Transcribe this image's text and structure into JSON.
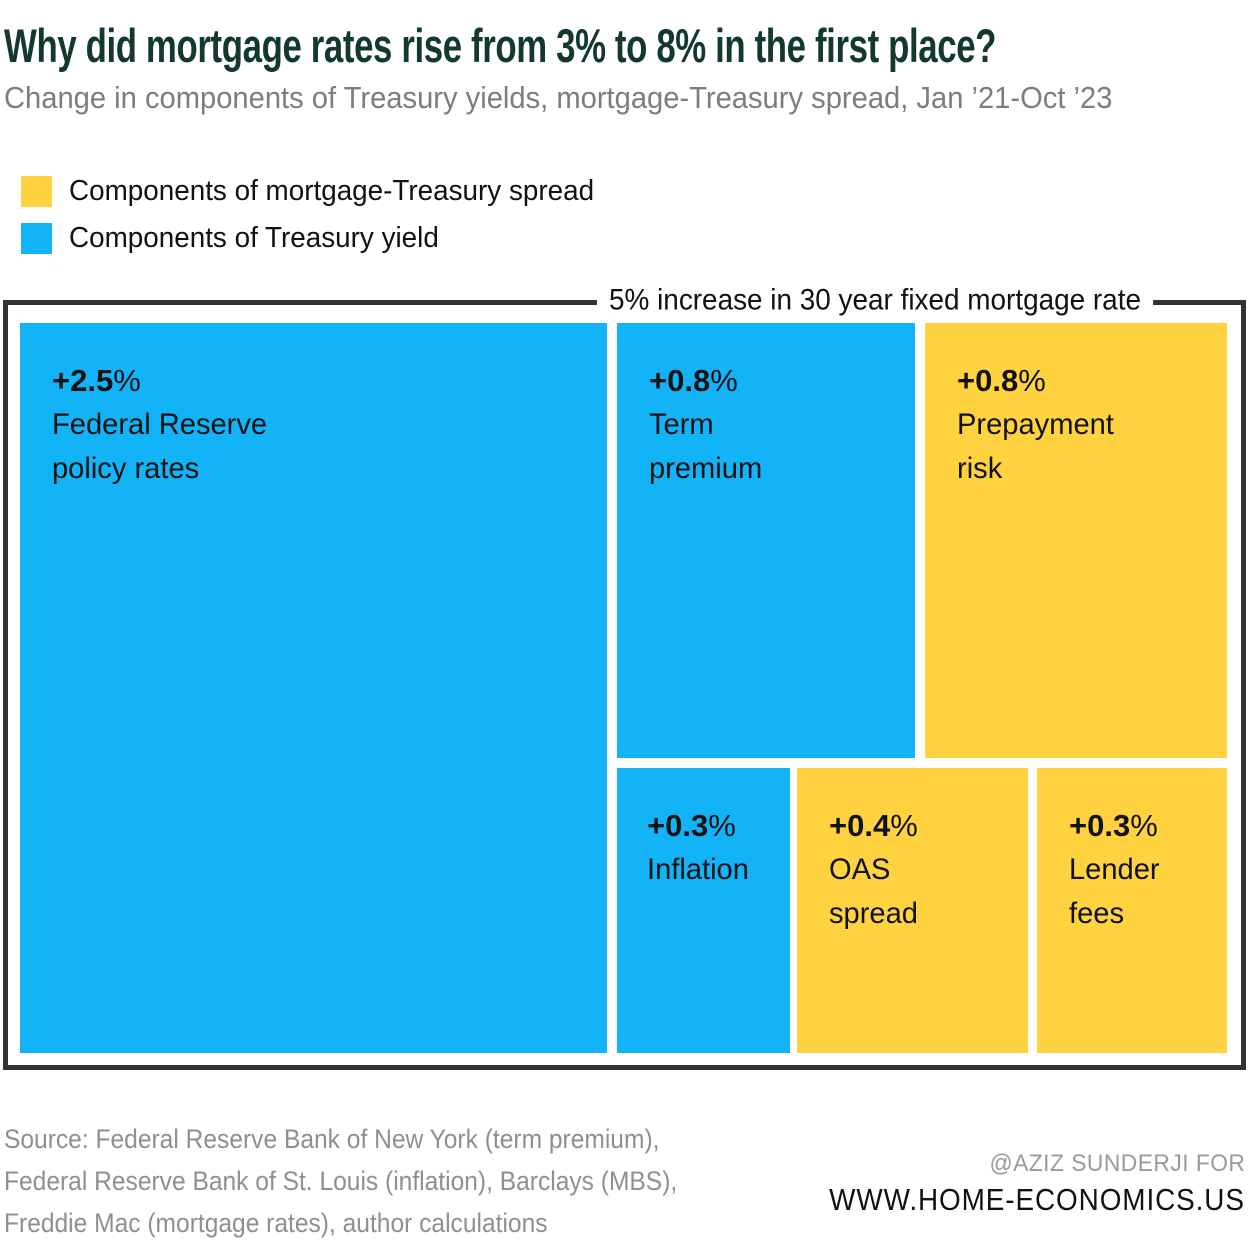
{
  "header": {
    "title": "Why did mortgage rates rise from 3% to 8% in the first place?",
    "subtitle": "Change in components of Treasury yields, mortgage-Treasury spread, Jan ’21-Oct ’23"
  },
  "legend": {
    "items": [
      {
        "label": "Components of mortgage-Treasury spread",
        "color": "#ffd23f"
      },
      {
        "label": "Components of Treasury yield",
        "color": "#12b3f7"
      }
    ]
  },
  "chart_data": {
    "type": "treemap",
    "title": "Why did mortgage rates rise from 3% to 8% in the first place?",
    "subtitle": "Change in components of Treasury yields, mortgage-Treasury spread, Jan ’21-Oct ’23",
    "bracket_label": "5% increase in 30 year fixed mortgage rate",
    "total_percent": 5,
    "legend": [
      {
        "name": "Components of mortgage-Treasury spread",
        "color": "#ffd23f"
      },
      {
        "name": "Components of Treasury yield",
        "color": "#12b3f7"
      }
    ],
    "cells": [
      {
        "name": "Federal Reserve policy rates",
        "value": 2.5,
        "display_value": "+2.5",
        "unit": "%",
        "label_lines": "Federal Reserve\npolicy rates",
        "group": "Components of Treasury yield",
        "color": "#12b3f7"
      },
      {
        "name": "Term premium",
        "value": 0.8,
        "display_value": "+0.8",
        "unit": "%",
        "label_lines": "Term\npremium",
        "group": "Components of Treasury yield",
        "color": "#12b3f7"
      },
      {
        "name": "Prepayment risk",
        "value": 0.8,
        "display_value": "+0.8",
        "unit": "%",
        "label_lines": "Prepayment\nrisk",
        "group": "Components of mortgage-Treasury spread",
        "color": "#ffd23f"
      },
      {
        "name": "Inflation",
        "value": 0.3,
        "display_value": "+0.3",
        "unit": "%",
        "label_lines": "Inflation",
        "group": "Components of Treasury yield",
        "color": "#12b3f7"
      },
      {
        "name": "OAS spread",
        "value": 0.4,
        "display_value": "+0.4",
        "unit": "%",
        "label_lines": "OAS\nspread",
        "group": "Components of mortgage-Treasury spread",
        "color": "#ffd23f"
      },
      {
        "name": "Lender fees",
        "value": 0.3,
        "display_value": "+0.3",
        "unit": "%",
        "label_lines": "Lender\nfees",
        "group": "Components of mortgage-Treasury spread",
        "color": "#ffd23f"
      }
    ],
    "frame_color": "#333333"
  },
  "footer": {
    "source": "Source: Federal Reserve Bank of New York (term premium),\nFederal Reserve Bank of St. Louis (inflation), Barclays (MBS),\nFreddie Mac (mortgage rates), author calculations",
    "credit_line1": "@AZIZ SUNDERJI FOR",
    "credit_line2": "WWW.HOME-ECONOMICS.US"
  }
}
